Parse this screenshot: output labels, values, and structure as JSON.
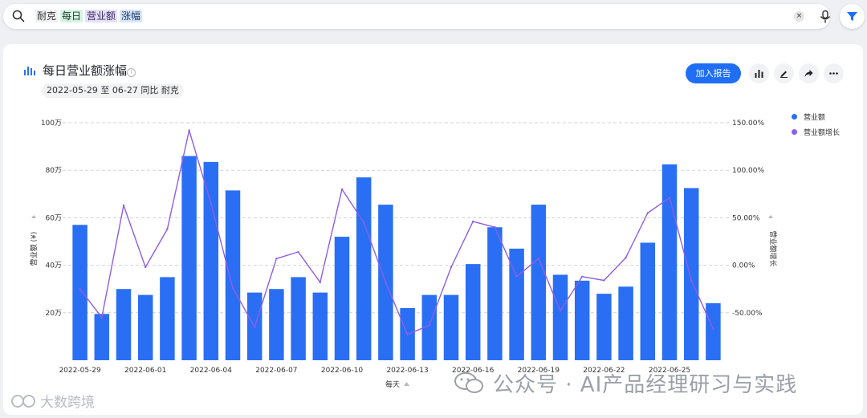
{
  "search": {
    "tokens": [
      {
        "text": "耐克",
        "style": "plain"
      },
      {
        "text": "每日",
        "style": "green"
      },
      {
        "text": "营业额",
        "style": "purple"
      },
      {
        "text": "涨幅",
        "style": "blue"
      }
    ],
    "clear_label": "×"
  },
  "card": {
    "title": "每日营业额涨幅",
    "info_label": "i",
    "subtitle": "2022-05-29 至 06-27 同比 耐克",
    "add_report_label": "加入报告"
  },
  "watermark": {
    "text": "公众号 · AI产品经理研习与实践",
    "corner": "大数跨境"
  },
  "colors": {
    "bar": "#2a6ff3",
    "line": "#8f5de6",
    "accent": "#1f6ef5"
  },
  "chart_data": {
    "type": "bar+line",
    "xlabel": "每天",
    "ylabel_left": "营业额 (¥)",
    "ylabel_right": "营业额增长",
    "y_left_ticks": [
      "20万",
      "40万",
      "60万",
      "80万",
      "100万"
    ],
    "y_left_tick_values": [
      20,
      40,
      60,
      80,
      100
    ],
    "y_left_range": [
      0,
      100
    ],
    "y_right_ticks": [
      "-50.00%",
      "0.00%",
      "50.00%",
      "100.00%",
      "150.00%"
    ],
    "y_right_tick_values": [
      -50,
      0,
      50,
      100,
      150
    ],
    "y_right_range": [
      -100,
      150
    ],
    "x_tick_labels": [
      "2022-05-29",
      "2022-06-01",
      "2022-06-04",
      "2022-06-07",
      "2022-06-10",
      "2022-06-13",
      "2022-06-16",
      "2022-06-19",
      "2022-06-22",
      "2022-06-25"
    ],
    "categories": [
      "2022-05-29",
      "2022-05-30",
      "2022-05-31",
      "2022-06-01",
      "2022-06-02",
      "2022-06-03",
      "2022-06-04",
      "2022-06-05",
      "2022-06-06",
      "2022-06-07",
      "2022-06-08",
      "2022-06-09",
      "2022-06-10",
      "2022-06-11",
      "2022-06-12",
      "2022-06-13",
      "2022-06-14",
      "2022-06-15",
      "2022-06-16",
      "2022-06-17",
      "2022-06-18",
      "2022-06-19",
      "2022-06-20",
      "2022-06-21",
      "2022-06-22",
      "2022-06-23",
      "2022-06-24",
      "2022-06-25",
      "2022-06-26",
      "2022-06-27"
    ],
    "series": [
      {
        "name": "营业额",
        "type": "bar",
        "axis": "left",
        "values": [
          57,
          19.5,
          30,
          27.5,
          35,
          86,
          83.5,
          71.5,
          28.5,
          30,
          35,
          28.5,
          52,
          77,
          65.5,
          22,
          27.5,
          27.5,
          40.5,
          56,
          47,
          65.5,
          36,
          33.5,
          28,
          31,
          49.5,
          82.5,
          72.5,
          24
        ]
      },
      {
        "name": "营业额增长",
        "type": "line",
        "axis": "right",
        "values": [
          -25,
          -55,
          63,
          -2,
          38,
          142,
          65,
          -24,
          -65,
          7,
          14,
          -18,
          80,
          45,
          -18,
          -73,
          -63,
          -2,
          46,
          40,
          -12,
          7,
          -48,
          -12,
          -16,
          8,
          55,
          71,
          -16,
          -67
        ]
      }
    ],
    "legend_position": "top-right",
    "grid": true
  }
}
